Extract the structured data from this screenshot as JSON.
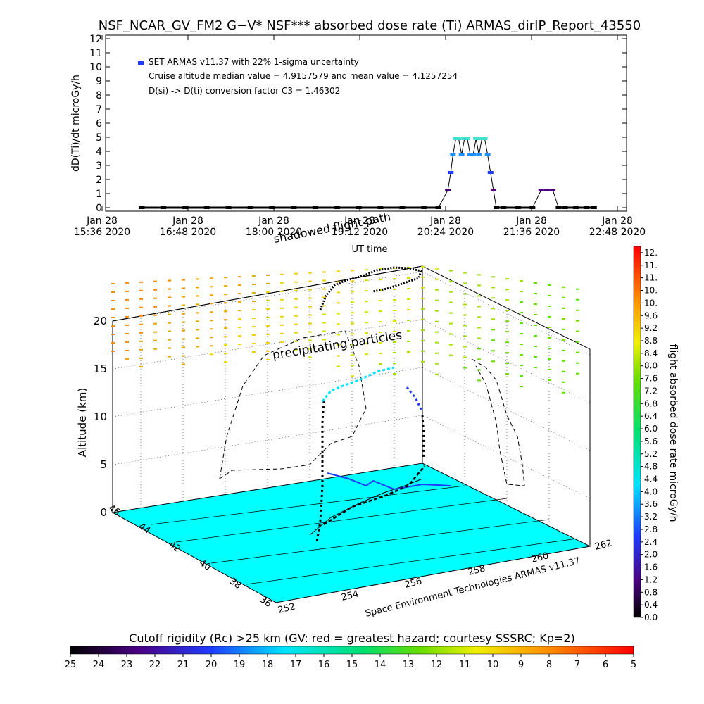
{
  "header": {
    "title": "NSF_NCAR_GV_FM2 G−V* NSF*** absorbed dose rate (Ti) ARMAS_dirIP_Report_43550"
  },
  "top_chart": {
    "ylabel": "dD(Ti)/dt microGy/h",
    "xlabel": "UT time",
    "legend_line1": "SET ARMAS v11.37 with 22% 1-sigma uncertainty",
    "legend_line2": "Cruise altitude median value = 4.9157579 and mean value = 4.1257254",
    "legend_line3": "D(si) -> D(ti) conversion factor C3 = 1.46302",
    "y_ticks": [
      "0",
      "1",
      "2",
      "3",
      "4",
      "5",
      "6",
      "7",
      "8",
      "9",
      "10",
      "11",
      "12"
    ],
    "x_ticks": [
      {
        "l1": "Jan 28",
        "l2": "15:36 2020"
      },
      {
        "l1": "Jan 28",
        "l2": "16:48 2020"
      },
      {
        "l1": "Jan 28",
        "l2": "18:00 2020"
      },
      {
        "l1": "Jan 28",
        "l2": "19:12 2020"
      },
      {
        "l1": "Jan 28",
        "l2": "20:24 2020"
      },
      {
        "l1": "Jan 28",
        "l2": "21:36 2020"
      },
      {
        "l1": "Jan 28",
        "l2": "22:48 2020"
      }
    ]
  },
  "chart_data": [
    {
      "type": "scatter",
      "title": "NSF_NCAR_GV_FM2 G−V* NSF*** absorbed dose rate (Ti) ARMAS_dirIP_Report_43550",
      "xlabel": "UT time",
      "ylabel": "dD(Ti)/dt microGy/h",
      "x_unit": "hours UT, Jan 28 2020",
      "xlim": [
        15.6,
        22.8
      ],
      "ylim": [
        0,
        12
      ],
      "series": [
        {
          "name": "SET ARMAS v11.37 with 22% 1-sigma uncertainty",
          "x": [
            16.1,
            16.4,
            16.7,
            17.0,
            17.3,
            17.6,
            17.9,
            18.2,
            18.5,
            18.8,
            19.1,
            19.4,
            19.7,
            20.0,
            20.2,
            20.33,
            20.37,
            20.4,
            20.44,
            20.48,
            20.52,
            20.56,
            20.6,
            20.64,
            20.68,
            20.72,
            20.76,
            20.8,
            20.84,
            20.88,
            20.92,
            20.96,
            21.0,
            21.1,
            21.3,
            21.5,
            21.62,
            21.7,
            21.78,
            21.86,
            21.95,
            22.1,
            22.25,
            22.35
          ],
          "y": [
            0,
            0,
            0,
            0,
            0,
            0,
            0,
            0,
            0,
            0,
            0,
            0,
            0,
            0,
            0,
            1.25,
            2.5,
            3.75,
            4.9,
            4.9,
            3.75,
            4.9,
            4.9,
            3.75,
            3.75,
            4.9,
            3.75,
            4.9,
            4.9,
            3.75,
            2.5,
            1.25,
            0,
            0,
            0,
            0,
            1.25,
            1.25,
            1.25,
            0,
            0,
            0,
            0,
            0
          ]
        }
      ]
    },
    {
      "type": "scatter",
      "title": "",
      "zlabel": "Altitude (km)",
      "z_ticks": [
        "0",
        "5",
        "10",
        "15",
        "20"
      ],
      "lat_ticks": [
        "36",
        "38",
        "40",
        "42",
        "44",
        "46"
      ],
      "lon_ticks": [
        "252",
        "254",
        "256",
        "258",
        "260",
        "262"
      ],
      "annotations": [
        "shadowed flight path",
        "precipitating particles"
      ],
      "credit": "Space Environment Technologies ARMAS v11.37"
    }
  ],
  "dose_colorbar": {
    "label": "flight absorbed dose rate microGy/h",
    "ticks": [
      "0.0",
      "0.4",
      "0.8",
      "1.2",
      "1.6",
      "2.0",
      "2.4",
      "2.8",
      "3.2",
      "3.6",
      "4.0",
      "4.4",
      "4.8",
      "5.2",
      "5.6",
      "6.0",
      "6.4",
      "6.8",
      "7.2",
      "7.6",
      "8.0",
      "8.4",
      "8.8",
      "9.2",
      "9.6",
      "10.",
      "10.",
      "11.",
      "11.",
      "12."
    ],
    "top_label": "12."
  },
  "rigidity_colorbar": {
    "label": "Cutoff rigidity (Rc) >25 km (GV: red = greatest hazard; courtesy SSSRC; Kp=2)",
    "ticks": [
      "25",
      "24",
      "23",
      "22",
      "21",
      "20",
      "19",
      "18",
      "17",
      "16",
      "15",
      "14",
      "13",
      "12",
      "11",
      "10",
      "9",
      "8",
      "7",
      "6",
      "5"
    ]
  },
  "colors": {
    "ground": "#00ffff",
    "legend_dot": "#1e3cff"
  }
}
